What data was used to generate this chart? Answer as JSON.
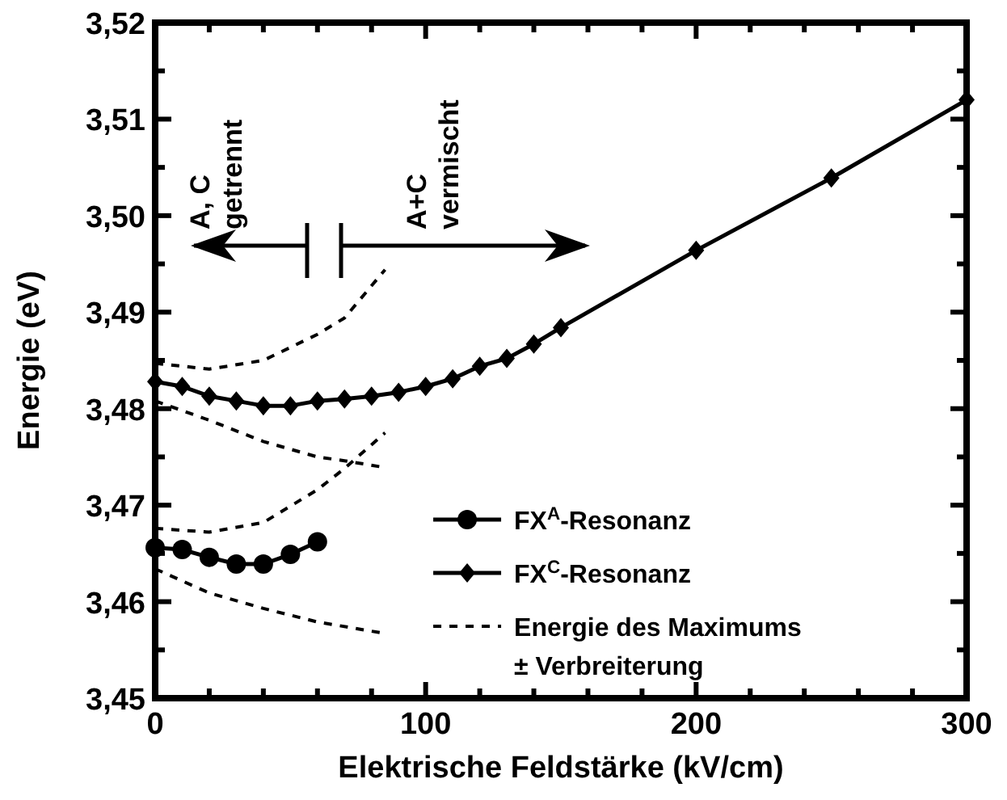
{
  "chart_data": {
    "type": "line",
    "xlabel": "Elektrische Feldstärke (kV/cm)",
    "ylabel": "Energie (eV)",
    "xlim": [
      0,
      300
    ],
    "ylim": [
      3.45,
      3.52
    ],
    "xticks": [
      0,
      {
        "value": 20,
        "label": null
      },
      {
        "value": 40,
        "label": null
      },
      {
        "value": 60,
        "label": null
      },
      {
        "value": 80,
        "label": null
      },
      100,
      {
        "value": 120,
        "label": null
      },
      {
        "value": 140,
        "label": null
      },
      {
        "value": 160,
        "label": null
      },
      {
        "value": 180,
        "label": null
      },
      200,
      {
        "value": 220,
        "label": null
      },
      {
        "value": 240,
        "label": null
      },
      {
        "value": 260,
        "label": null
      },
      {
        "value": 280,
        "label": null
      },
      300
    ],
    "yticks": [
      {
        "value": 3.45,
        "label": "3,45"
      },
      {
        "value": 3.455,
        "label": null
      },
      {
        "value": 3.46,
        "label": "3,46"
      },
      {
        "value": 3.465,
        "label": null
      },
      {
        "value": 3.47,
        "label": "3,47"
      },
      {
        "value": 3.475,
        "label": null
      },
      {
        "value": 3.48,
        "label": "3,48"
      },
      {
        "value": 3.485,
        "label": null
      },
      {
        "value": 3.49,
        "label": "3,49"
      },
      {
        "value": 3.495,
        "label": null
      },
      {
        "value": 3.5,
        "label": "3,50"
      },
      {
        "value": 3.505,
        "label": null
      },
      {
        "value": 3.51,
        "label": "3,51"
      },
      {
        "value": 3.515,
        "label": null
      },
      {
        "value": 3.52,
        "label": "3,52"
      }
    ],
    "legend": "right",
    "grid": false,
    "annotations": [
      "A, C\ngetrennt",
      "A+C\nvermischt"
    ],
    "series": [
      {
        "name": "FX$^{A}$-Resonanz",
        "color": "#000000",
        "marker": "circle",
        "line_style": "solid",
        "x": [
          0,
          10,
          20,
          30,
          40,
          50,
          60
        ],
        "values": [
          3.4656,
          3.4654,
          3.4646,
          3.4639,
          3.4639,
          3.4649,
          3.4662
        ]
      },
      {
        "name": "FX$^{C}$-Resonanz",
        "color": "#000000",
        "marker": "diamond",
        "line_style": "solid",
        "x": [
          0,
          10,
          20,
          30,
          40,
          50,
          60,
          70,
          80,
          90,
          100,
          110,
          120,
          130,
          140,
          150,
          200,
          250,
          300
        ],
        "values": [
          3.4828,
          3.4823,
          3.4813,
          3.4808,
          3.4803,
          3.4803,
          3.4808,
          3.481,
          3.4813,
          3.4817,
          3.4823,
          3.4831,
          3.4844,
          3.4852,
          3.4867,
          3.4884,
          3.4964,
          3.5039,
          3.512
        ]
      },
      {
        "name": "Energie des Maximums\n± Verbreiterung",
        "color": "#000000",
        "marker": "none",
        "line_style": "dashed",
        "x": [
          0,
          20,
          40,
          60,
          70,
          85
        ],
        "values": [
          3.4847,
          3.4841,
          3.485,
          3.4877,
          3.4894,
          3.4944
        ]
      },
      {
        "color": "#000000",
        "marker": "none",
        "line_style": "dashed",
        "x": [
          0,
          20,
          40,
          60,
          70,
          85
        ],
        "values": [
          3.4808,
          3.4788,
          3.4766,
          3.475,
          3.4746,
          3.4739
        ]
      },
      {
        "color": "#000000",
        "marker": "none",
        "line_style": "dashed",
        "x": [
          0,
          20,
          40,
          60,
          70,
          85
        ],
        "values": [
          3.4676,
          3.4672,
          3.4682,
          3.4716,
          3.4738,
          3.4775
        ]
      },
      {
        "color": "#000000",
        "marker": "none",
        "line_style": "dashed",
        "x": [
          0,
          20,
          40,
          60,
          85
        ],
        "values": [
          3.4634,
          3.4609,
          3.4593,
          3.4579,
          3.4567
        ]
      }
    ]
  }
}
